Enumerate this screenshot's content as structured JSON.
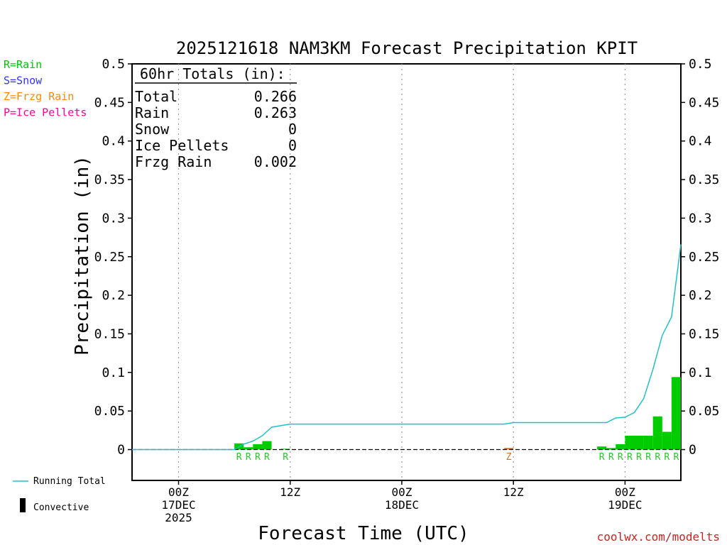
{
  "chart_data": {
    "type": "bar",
    "title": "2025121618 NAM3KM Forecast Precipitation KPIT",
    "xlabel": "Forecast Time (UTC)",
    "ylabel": "Precipitation (in)",
    "ylim": [
      -0.04,
      0.5
    ],
    "yticks": [
      0,
      0.05,
      0.1,
      0.15,
      0.2,
      0.25,
      0.3,
      0.35,
      0.4,
      0.45,
      0.5
    ],
    "xlim": [
      -5,
      54
    ],
    "xticks": [
      {
        "hour": 0,
        "lines": [
          "00Z",
          "17DEC",
          "2025"
        ]
      },
      {
        "hour": 12,
        "lines": [
          "12Z"
        ]
      },
      {
        "hour": 24,
        "lines": [
          "00Z",
          "18DEC"
        ]
      },
      {
        "hour": 36,
        "lines": [
          "12Z"
        ]
      },
      {
        "hour": 48,
        "lines": [
          "00Z",
          "19DEC"
        ]
      }
    ],
    "grid": "vertical dotted at tick hours",
    "totals": {
      "heading": "60hr Totals (in):",
      "rows": [
        {
          "label": "Total",
          "value": "0.266"
        },
        {
          "label": "Rain",
          "value": "0.263"
        },
        {
          "label": "Snow",
          "value": "0"
        },
        {
          "label": "Ice Pellets",
          "value": "0"
        },
        {
          "label": "Frzg Rain",
          "value": "0.002"
        }
      ]
    },
    "legend": [
      {
        "label": "R=Rain",
        "color": "#00c800"
      },
      {
        "label": "S=Snow",
        "color": "#3333ff"
      },
      {
        "label": "Z=Frzg Rain",
        "color": "#ff8800"
      },
      {
        "label": "P=Ice Pellets",
        "color": "#ff0099"
      }
    ],
    "bottom_legend": {
      "running_total": "Running Total",
      "convective": "Convective"
    },
    "bar_color": "#00cc00",
    "line_color": "#20c0c8",
    "frzg_color": "#d07020",
    "bars": [
      {
        "hour": 7,
        "value": 0.008,
        "type": "R"
      },
      {
        "hour": 8,
        "value": 0.003,
        "type": "R"
      },
      {
        "hour": 9,
        "value": 0.007,
        "type": "R"
      },
      {
        "hour": 10,
        "value": 0.011,
        "type": "R"
      },
      {
        "hour": 12,
        "value": 0.001,
        "type": "R"
      },
      {
        "hour": 36,
        "value": 0.002,
        "type": "Z"
      },
      {
        "hour": 46,
        "value": 0.004,
        "type": "R"
      },
      {
        "hour": 47,
        "value": 0.002,
        "type": "R"
      },
      {
        "hour": 48,
        "value": 0.007,
        "type": "R"
      },
      {
        "hour": 49,
        "value": 0.018,
        "type": "R"
      },
      {
        "hour": 50,
        "value": 0.018,
        "type": "R"
      },
      {
        "hour": 51,
        "value": 0.018,
        "type": "R"
      },
      {
        "hour": 52,
        "value": 0.043,
        "type": "R"
      },
      {
        "hour": 53,
        "value": 0.023,
        "type": "R"
      },
      {
        "hour": 54,
        "value": 0.094,
        "type": "R"
      }
    ],
    "running_total": {
      "x": [
        -5,
        6,
        7,
        8,
        9,
        10,
        11,
        12,
        13,
        35,
        36,
        46,
        47,
        48,
        49,
        50,
        51,
        52,
        53,
        54
      ],
      "y": [
        0,
        0,
        0.007,
        0.011,
        0.018,
        0.029,
        0.031,
        0.033,
        0.033,
        0.033,
        0.035,
        0.035,
        0.041,
        0.042,
        0.048,
        0.066,
        0.104,
        0.148,
        0.172,
        0.266
      ]
    },
    "watermark": "coolwx.com/modelts"
  }
}
